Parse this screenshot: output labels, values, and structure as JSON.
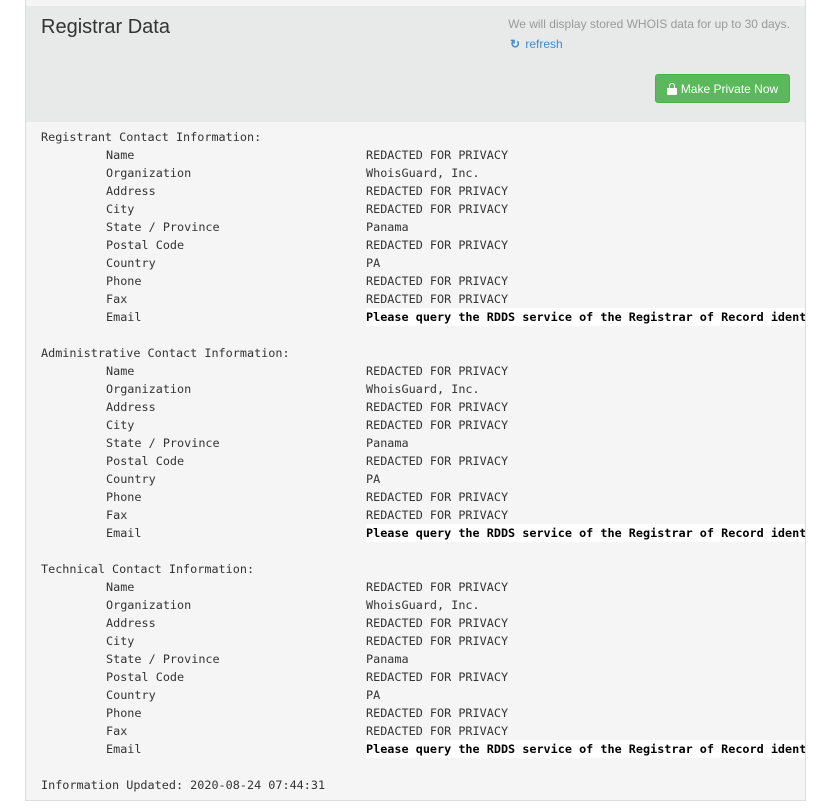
{
  "header": {
    "title": "Registrar Data",
    "notice": "We will display stored WHOIS data for up to 30 days.",
    "refresh_label": "refresh",
    "make_private_label": "Make Private Now",
    "button_color": "#5cb85c"
  },
  "sections": [
    {
      "heading": "Registrant Contact Information:",
      "rows": [
        {
          "label": "Name",
          "value": "REDACTED FOR PRIVACY"
        },
        {
          "label": "Organization",
          "value": "WhoisGuard, Inc."
        },
        {
          "label": "Address",
          "value": "REDACTED FOR PRIVACY"
        },
        {
          "label": "City",
          "value": "REDACTED FOR PRIVACY"
        },
        {
          "label": "State / Province",
          "value": "Panama"
        },
        {
          "label": "Postal Code",
          "value": "REDACTED FOR PRIVACY"
        },
        {
          "label": "Country",
          "value": "PA"
        },
        {
          "label": "Phone",
          "value": "REDACTED FOR PRIVACY"
        },
        {
          "label": "Fax",
          "value": "REDACTED FOR PRIVACY"
        },
        {
          "label": "Email",
          "value": "Please query the RDDS service of the Registrar of Record identif",
          "bold": true
        }
      ]
    },
    {
      "heading": "Administrative Contact Information:",
      "rows": [
        {
          "label": "Name",
          "value": "REDACTED FOR PRIVACY"
        },
        {
          "label": "Organization",
          "value": "WhoisGuard, Inc."
        },
        {
          "label": "Address",
          "value": "REDACTED FOR PRIVACY"
        },
        {
          "label": "City",
          "value": "REDACTED FOR PRIVACY"
        },
        {
          "label": "State / Province",
          "value": "Panama"
        },
        {
          "label": "Postal Code",
          "value": "REDACTED FOR PRIVACY"
        },
        {
          "label": "Country",
          "value": "PA"
        },
        {
          "label": "Phone",
          "value": "REDACTED FOR PRIVACY"
        },
        {
          "label": "Fax",
          "value": "REDACTED FOR PRIVACY"
        },
        {
          "label": "Email",
          "value": "Please query the RDDS service of the Registrar of Record identif",
          "bold": true
        }
      ]
    },
    {
      "heading": "Technical Contact Information:",
      "rows": [
        {
          "label": "Name",
          "value": "REDACTED FOR PRIVACY"
        },
        {
          "label": "Organization",
          "value": "WhoisGuard, Inc."
        },
        {
          "label": "Address",
          "value": "REDACTED FOR PRIVACY"
        },
        {
          "label": "City",
          "value": "REDACTED FOR PRIVACY"
        },
        {
          "label": "State / Province",
          "value": "Panama"
        },
        {
          "label": "Postal Code",
          "value": "REDACTED FOR PRIVACY"
        },
        {
          "label": "Country",
          "value": "PA"
        },
        {
          "label": "Phone",
          "value": "REDACTED FOR PRIVACY"
        },
        {
          "label": "Fax",
          "value": "REDACTED FOR PRIVACY"
        },
        {
          "label": "Email",
          "value": "Please query the RDDS service of the Registrar of Record identif",
          "bold": true
        }
      ]
    }
  ],
  "footer": {
    "updated": "Information Updated: 2020-08-24 07:44:31"
  }
}
